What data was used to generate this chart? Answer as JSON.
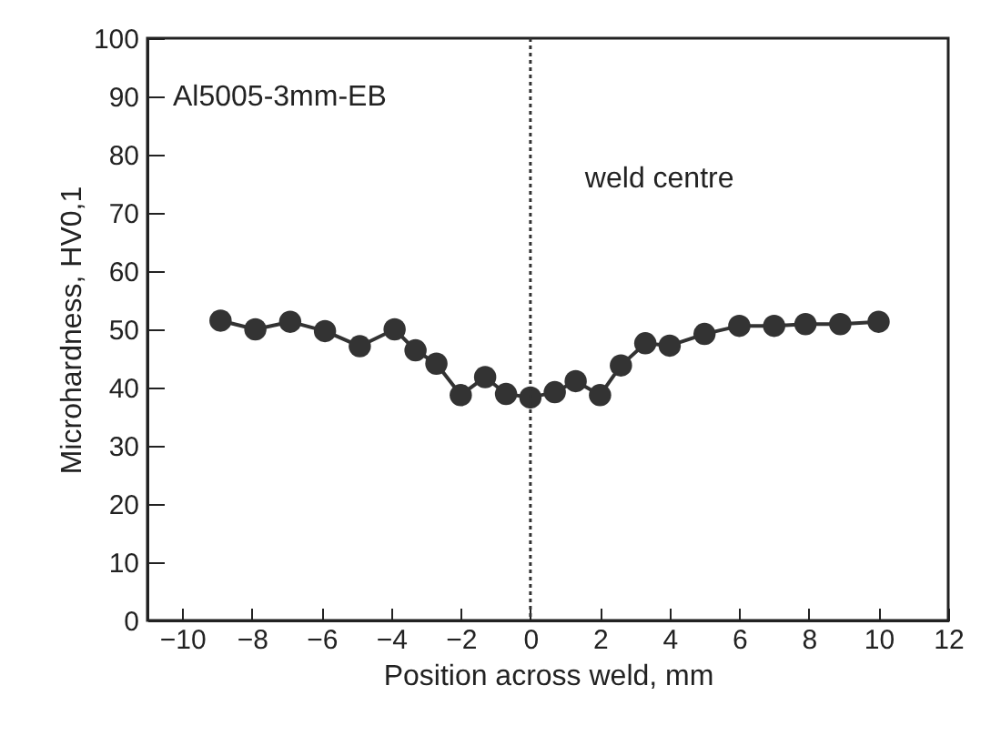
{
  "chart_data": {
    "type": "line",
    "xlabel": "Position across weld, mm",
    "ylabel": "Microhardness, HV0,1",
    "annotations": [
      "Al5005-3mm-EB"
    ],
    "x": [
      -8.9,
      -7.9,
      -6.9,
      -5.9,
      -4.9,
      -3.9,
      -3.3,
      -2.7,
      -2.0,
      -1.3,
      -0.7,
      0,
      0.7,
      1.3,
      2.0,
      2.6,
      3.3,
      4.0,
      5.0,
      6.0,
      7.0,
      7.9,
      8.9,
      10.0
    ],
    "series": [
      {
        "color": "#333333",
        "values": [
          51.5,
          50,
          51.3,
          49.7,
          47.1,
          50,
          46.4,
          44.1,
          38.7,
          41.8,
          38.9,
          38.3,
          39.2,
          41.1,
          38.7,
          43.8,
          47.6,
          47.2,
          49.2,
          50.6,
          50.6,
          50.9,
          50.9,
          51.3
        ]
      }
    ],
    "xlim": [
      -11,
      12
    ],
    "xticks": [
      -10,
      -8,
      -6,
      -4,
      -2,
      0,
      2,
      4,
      6,
      8,
      10,
      12
    ],
    "ylim": [
      0,
      100
    ],
    "yticks": [
      0,
      10,
      20,
      30,
      40,
      50,
      60,
      70,
      80,
      90,
      100
    ],
    "ref_lines": [
      {
        "axis": "x",
        "value": 0,
        "label": "weld centre",
        "line_style": "dotted",
        "color": "#333333"
      }
    ],
    "marker": "circle",
    "line_style": "solid",
    "grid": false
  }
}
